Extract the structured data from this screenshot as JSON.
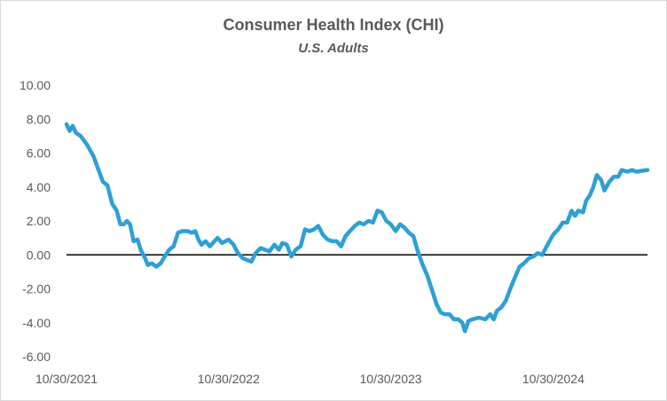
{
  "chart_data": {
    "type": "line",
    "title": "Consumer Health Index (CHI)",
    "subtitle": "U.S. Adults",
    "xlabel": "",
    "ylabel": "",
    "ylim": [
      -6,
      10
    ],
    "y_ticks": [
      "10.00",
      "8.00",
      "6.00",
      "4.00",
      "2.00",
      "0.00",
      "-2.00",
      "-4.00",
      "-6.00"
    ],
    "x_ticks": [
      "10/30/2021",
      "10/30/2022",
      "10/30/2023",
      "10/30/2024"
    ],
    "x_range": [
      "2021-10-30",
      "2025-05-30"
    ],
    "grid": false,
    "legend": "none",
    "line_color": "#2e9fd6",
    "zero_line_color": "#000000",
    "series": [
      {
        "values": [
          {
            "x": "2021-10-30",
            "y": 7.7
          },
          {
            "x": "2021-11-06",
            "y": 7.3
          },
          {
            "x": "2021-11-13",
            "y": 7.6
          },
          {
            "x": "2021-11-20",
            "y": 7.2
          },
          {
            "x": "2021-12-01",
            "y": 7.0
          },
          {
            "x": "2021-12-15",
            "y": 6.5
          },
          {
            "x": "2021-12-30",
            "y": 5.8
          },
          {
            "x": "2022-01-10",
            "y": 5.0
          },
          {
            "x": "2022-01-20",
            "y": 4.3
          },
          {
            "x": "2022-01-30",
            "y": 4.1
          },
          {
            "x": "2022-02-10",
            "y": 3.0
          },
          {
            "x": "2022-02-20",
            "y": 2.6
          },
          {
            "x": "2022-02-28",
            "y": 1.8
          },
          {
            "x": "2022-03-08",
            "y": 1.8
          },
          {
            "x": "2022-03-15",
            "y": 2.0
          },
          {
            "x": "2022-03-22",
            "y": 1.8
          },
          {
            "x": "2022-03-30",
            "y": 0.8
          },
          {
            "x": "2022-04-08",
            "y": 0.9
          },
          {
            "x": "2022-04-15",
            "y": 0.3
          },
          {
            "x": "2022-04-25",
            "y": -0.2
          },
          {
            "x": "2022-05-01",
            "y": -0.6
          },
          {
            "x": "2022-05-10",
            "y": -0.5
          },
          {
            "x": "2022-05-20",
            "y": -0.7
          },
          {
            "x": "2022-05-30",
            "y": -0.5
          },
          {
            "x": "2022-06-08",
            "y": -0.1
          },
          {
            "x": "2022-06-18",
            "y": 0.3
          },
          {
            "x": "2022-06-28",
            "y": 0.5
          },
          {
            "x": "2022-07-08",
            "y": 1.3
          },
          {
            "x": "2022-07-18",
            "y": 1.4
          },
          {
            "x": "2022-07-30",
            "y": 1.4
          },
          {
            "x": "2022-08-08",
            "y": 1.3
          },
          {
            "x": "2022-08-16",
            "y": 1.4
          },
          {
            "x": "2022-08-23",
            "y": 0.9
          },
          {
            "x": "2022-08-30",
            "y": 0.6
          },
          {
            "x": "2022-09-08",
            "y": 0.8
          },
          {
            "x": "2022-09-18",
            "y": 0.5
          },
          {
            "x": "2022-09-28",
            "y": 0.8
          },
          {
            "x": "2022-10-05",
            "y": 1.0
          },
          {
            "x": "2022-10-15",
            "y": 0.7
          },
          {
            "x": "2022-10-30",
            "y": 0.9
          },
          {
            "x": "2022-11-10",
            "y": 0.6
          },
          {
            "x": "2022-11-20",
            "y": 0.1
          },
          {
            "x": "2022-12-01",
            "y": -0.2
          },
          {
            "x": "2022-12-10",
            "y": -0.3
          },
          {
            "x": "2022-12-20",
            "y": -0.4
          },
          {
            "x": "2022-12-30",
            "y": 0.1
          },
          {
            "x": "2023-01-10",
            "y": 0.4
          },
          {
            "x": "2023-01-20",
            "y": 0.3
          },
          {
            "x": "2023-01-30",
            "y": 0.2
          },
          {
            "x": "2023-02-10",
            "y": 0.6
          },
          {
            "x": "2023-02-20",
            "y": 0.3
          },
          {
            "x": "2023-02-28",
            "y": 0.7
          },
          {
            "x": "2023-03-10",
            "y": 0.6
          },
          {
            "x": "2023-03-20",
            "y": -0.1
          },
          {
            "x": "2023-03-30",
            "y": 0.3
          },
          {
            "x": "2023-04-10",
            "y": 0.5
          },
          {
            "x": "2023-04-20",
            "y": 1.5
          },
          {
            "x": "2023-04-30",
            "y": 1.4
          },
          {
            "x": "2023-05-10",
            "y": 1.5
          },
          {
            "x": "2023-05-20",
            "y": 1.7
          },
          {
            "x": "2023-05-30",
            "y": 1.2
          },
          {
            "x": "2023-06-10",
            "y": 0.9
          },
          {
            "x": "2023-06-20",
            "y": 0.8
          },
          {
            "x": "2023-06-30",
            "y": 0.8
          },
          {
            "x": "2023-07-10",
            "y": 0.5
          },
          {
            "x": "2023-07-20",
            "y": 1.1
          },
          {
            "x": "2023-07-30",
            "y": 1.4
          },
          {
            "x": "2023-08-10",
            "y": 1.7
          },
          {
            "x": "2023-08-20",
            "y": 1.9
          },
          {
            "x": "2023-08-30",
            "y": 1.8
          },
          {
            "x": "2023-09-10",
            "y": 2.0
          },
          {
            "x": "2023-09-20",
            "y": 1.9
          },
          {
            "x": "2023-09-30",
            "y": 2.6
          },
          {
            "x": "2023-10-10",
            "y": 2.5
          },
          {
            "x": "2023-10-20",
            "y": 2.0
          },
          {
            "x": "2023-10-30",
            "y": 1.8
          },
          {
            "x": "2023-11-10",
            "y": 1.4
          },
          {
            "x": "2023-11-20",
            "y": 1.8
          },
          {
            "x": "2023-11-30",
            "y": 1.6
          },
          {
            "x": "2023-12-10",
            "y": 1.3
          },
          {
            "x": "2023-12-20",
            "y": 1.1
          },
          {
            "x": "2023-12-30",
            "y": 0.2
          },
          {
            "x": "2024-01-10",
            "y": -0.6
          },
          {
            "x": "2024-01-20",
            "y": -1.2
          },
          {
            "x": "2024-01-30",
            "y": -2.0
          },
          {
            "x": "2024-02-10",
            "y": -2.9
          },
          {
            "x": "2024-02-20",
            "y": -3.4
          },
          {
            "x": "2024-02-28",
            "y": -3.5
          },
          {
            "x": "2024-03-10",
            "y": -3.5
          },
          {
            "x": "2024-03-20",
            "y": -3.8
          },
          {
            "x": "2024-03-30",
            "y": -3.8
          },
          {
            "x": "2024-04-08",
            "y": -4.0
          },
          {
            "x": "2024-04-14",
            "y": -4.5
          },
          {
            "x": "2024-04-22",
            "y": -3.9
          },
          {
            "x": "2024-05-01",
            "y": -3.8
          },
          {
            "x": "2024-05-15",
            "y": -3.7
          },
          {
            "x": "2024-05-30",
            "y": -3.8
          },
          {
            "x": "2024-06-10",
            "y": -3.5
          },
          {
            "x": "2024-06-18",
            "y": -3.8
          },
          {
            "x": "2024-06-25",
            "y": -3.3
          },
          {
            "x": "2024-07-05",
            "y": -3.1
          },
          {
            "x": "2024-07-15",
            "y": -2.7
          },
          {
            "x": "2024-07-25",
            "y": -2.0
          },
          {
            "x": "2024-08-05",
            "y": -1.3
          },
          {
            "x": "2024-08-15",
            "y": -0.7
          },
          {
            "x": "2024-08-25",
            "y": -0.5
          },
          {
            "x": "2024-09-05",
            "y": -0.2
          },
          {
            "x": "2024-09-15",
            "y": -0.1
          },
          {
            "x": "2024-09-25",
            "y": 0.1
          },
          {
            "x": "2024-10-05",
            "y": 0.0
          },
          {
            "x": "2024-10-15",
            "y": 0.5
          },
          {
            "x": "2024-10-30",
            "y": 1.2
          },
          {
            "x": "2024-11-10",
            "y": 1.5
          },
          {
            "x": "2024-11-20",
            "y": 1.9
          },
          {
            "x": "2024-11-30",
            "y": 1.9
          },
          {
            "x": "2024-12-10",
            "y": 2.6
          },
          {
            "x": "2024-12-18",
            "y": 2.3
          },
          {
            "x": "2024-12-25",
            "y": 2.6
          },
          {
            "x": "2025-01-05",
            "y": 2.5
          },
          {
            "x": "2025-01-12",
            "y": 3.2
          },
          {
            "x": "2025-01-20",
            "y": 3.5
          },
          {
            "x": "2025-01-28",
            "y": 4.0
          },
          {
            "x": "2025-02-05",
            "y": 4.7
          },
          {
            "x": "2025-02-15",
            "y": 4.4
          },
          {
            "x": "2025-02-22",
            "y": 3.8
          },
          {
            "x": "2025-03-05",
            "y": 4.3
          },
          {
            "x": "2025-03-15",
            "y": 4.6
          },
          {
            "x": "2025-03-25",
            "y": 4.6
          },
          {
            "x": "2025-04-02",
            "y": 5.0
          },
          {
            "x": "2025-04-15",
            "y": 4.9
          },
          {
            "x": "2025-04-25",
            "y": 5.0
          },
          {
            "x": "2025-05-05",
            "y": 4.9
          },
          {
            "x": "2025-05-30",
            "y": 5.0
          }
        ]
      }
    ]
  }
}
